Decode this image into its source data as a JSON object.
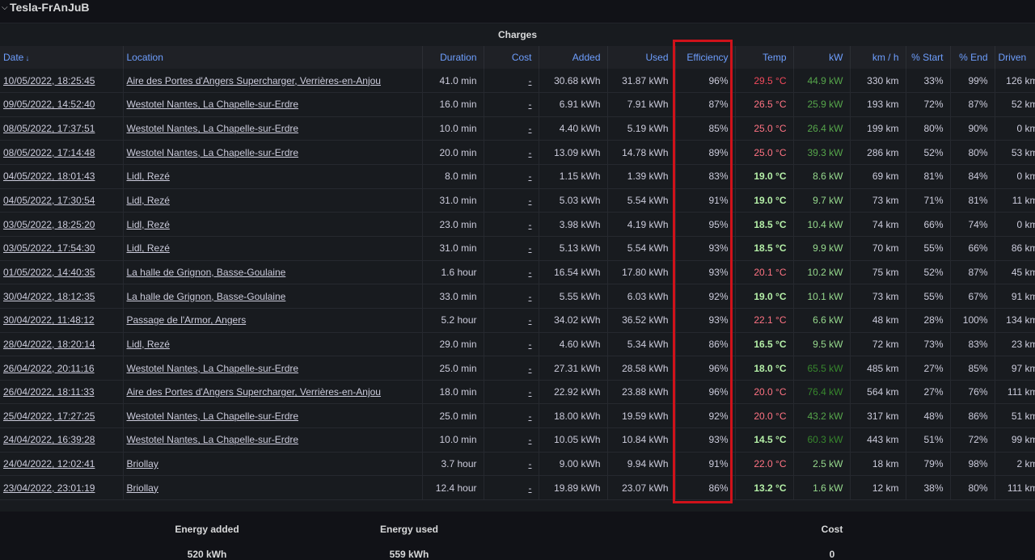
{
  "header": {
    "title": "Tesla-FrAnJuB",
    "chevron": "chevron-down-icon"
  },
  "panel": {
    "title": "Charges"
  },
  "columns": [
    "Date",
    "Location",
    "Duration",
    "Cost",
    "Added",
    "Used",
    "Efficiency",
    "Temp",
    "kW",
    "km / h",
    "% Start",
    "% End",
    "Driven"
  ],
  "rows": [
    [
      "10/05/2022, 18:25:45",
      "Aire des Portes d'Angers Supercharger, Verrières-en-Anjou",
      "41.0 min",
      "-",
      "30.68 kWh",
      "31.87 kWh",
      "96%",
      "29.5 °C",
      "44.9 kW",
      "330 km",
      "33%",
      "99%",
      "126 km"
    ],
    [
      "09/05/2022, 14:52:40",
      "Westotel Nantes, La Chapelle-sur-Erdre",
      "16.0 min",
      "-",
      "6.91 kWh",
      "7.91 kWh",
      "87%",
      "26.5 °C",
      "25.9 kW",
      "193 km",
      "72%",
      "87%",
      "52 km"
    ],
    [
      "08/05/2022, 17:37:51",
      "Westotel Nantes, La Chapelle-sur-Erdre",
      "10.0 min",
      "-",
      "4.40 kWh",
      "5.19 kWh",
      "85%",
      "25.0 °C",
      "26.4 kW",
      "199 km",
      "80%",
      "90%",
      "0 km"
    ],
    [
      "08/05/2022, 17:14:48",
      "Westotel Nantes, La Chapelle-sur-Erdre",
      "20.0 min",
      "-",
      "13.09 kWh",
      "14.78 kWh",
      "89%",
      "25.0 °C",
      "39.3 kW",
      "286 km",
      "52%",
      "80%",
      "53 km"
    ],
    [
      "04/05/2022, 18:01:43",
      "Lidl, Rezé",
      "8.0 min",
      "-",
      "1.15 kWh",
      "1.39 kWh",
      "83%",
      "19.0 °C",
      "8.6 kW",
      "69 km",
      "81%",
      "84%",
      "0 km"
    ],
    [
      "04/05/2022, 17:30:54",
      "Lidl, Rezé",
      "31.0 min",
      "-",
      "5.03 kWh",
      "5.54 kWh",
      "91%",
      "19.0 °C",
      "9.7 kW",
      "73 km",
      "71%",
      "81%",
      "11 km"
    ],
    [
      "03/05/2022, 18:25:20",
      "Lidl, Rezé",
      "23.0 min",
      "-",
      "3.98 kWh",
      "4.19 kWh",
      "95%",
      "18.5 °C",
      "10.4 kW",
      "74 km",
      "66%",
      "74%",
      "0 km"
    ],
    [
      "03/05/2022, 17:54:30",
      "Lidl, Rezé",
      "31.0 min",
      "-",
      "5.13 kWh",
      "5.54 kWh",
      "93%",
      "18.5 °C",
      "9.9 kW",
      "70 km",
      "55%",
      "66%",
      "86 km"
    ],
    [
      "01/05/2022, 14:40:35",
      "La halle de Grignon, Basse-Goulaine",
      "1.6 hour",
      "-",
      "16.54 kWh",
      "17.80 kWh",
      "93%",
      "20.1 °C",
      "10.2 kW",
      "75 km",
      "52%",
      "87%",
      "45 km"
    ],
    [
      "30/04/2022, 18:12:35",
      "La halle de Grignon, Basse-Goulaine",
      "33.0 min",
      "-",
      "5.55 kWh",
      "6.03 kWh",
      "92%",
      "19.0 °C",
      "10.1 kW",
      "73 km",
      "55%",
      "67%",
      "91 km"
    ],
    [
      "30/04/2022, 11:48:12",
      "Passage de l'Armor, Angers",
      "5.2 hour",
      "-",
      "34.02 kWh",
      "36.52 kWh",
      "93%",
      "22.1 °C",
      "6.6 kW",
      "48 km",
      "28%",
      "100%",
      "134 km"
    ],
    [
      "28/04/2022, 18:20:14",
      "Lidl, Rezé",
      "29.0 min",
      "-",
      "4.60 kWh",
      "5.34 kWh",
      "86%",
      "16.5 °C",
      "9.5 kW",
      "72 km",
      "73%",
      "83%",
      "23 km"
    ],
    [
      "26/04/2022, 20:11:16",
      "Westotel Nantes, La Chapelle-sur-Erdre",
      "25.0 min",
      "-",
      "27.31 kWh",
      "28.58 kWh",
      "96%",
      "18.0 °C",
      "65.5 kW",
      "485 km",
      "27%",
      "85%",
      "97 km"
    ],
    [
      "26/04/2022, 18:11:33",
      "Aire des Portes d'Angers Supercharger, Verrières-en-Anjou",
      "18.0 min",
      "-",
      "22.92 kWh",
      "23.88 kWh",
      "96%",
      "20.0 °C",
      "76.4 kW",
      "564 km",
      "27%",
      "76%",
      "111 km"
    ],
    [
      "25/04/2022, 17:27:25",
      "Westotel Nantes, La Chapelle-sur-Erdre",
      "25.0 min",
      "-",
      "18.00 kWh",
      "19.59 kWh",
      "92%",
      "20.0 °C",
      "43.2 kW",
      "317 km",
      "48%",
      "86%",
      "51 km"
    ],
    [
      "24/04/2022, 16:39:28",
      "Westotel Nantes, La Chapelle-sur-Erdre",
      "10.0 min",
      "-",
      "10.05 kWh",
      "10.84 kWh",
      "93%",
      "14.5 °C",
      "60.3 kW",
      "443 km",
      "51%",
      "72%",
      "99 km"
    ],
    [
      "24/04/2022, 12:02:41",
      "Briollay",
      "3.7 hour",
      "-",
      "9.00 kWh",
      "9.94 kWh",
      "91%",
      "22.0 °C",
      "2.5 kW",
      "18 km",
      "79%",
      "98%",
      "2 km"
    ],
    [
      "23/04/2022, 23:01:19",
      "Briollay",
      "12.4 hour",
      "-",
      "19.89 kWh",
      "23.07 kWh",
      "86%",
      "13.2 °C",
      "1.6 kW",
      "12 km",
      "38%",
      "80%",
      "111 km"
    ]
  ],
  "temp_colors": [
    "#f2495c",
    "#ff7383",
    "#ff7383",
    "#ff7383",
    "#b5f0a8",
    "#b5f0a8",
    "#b5f0a8",
    "#b5f0a8",
    "#ff7383",
    "#b5f0a8",
    "#ff7383",
    "#b5f0a8",
    "#b5f0a8",
    "#ff7383",
    "#ff7383",
    "#b5f0a8",
    "#ff7383",
    "#b5f0a8"
  ],
  "kw_colors": [
    "#56a64b",
    "#56a64b",
    "#56a64b",
    "#56a64b",
    "#96d98d",
    "#96d98d",
    "#96d98d",
    "#96d98d",
    "#96d98d",
    "#96d98d",
    "#96d98d",
    "#96d98d",
    "#37872d",
    "#37872d",
    "#56a64b",
    "#37872d",
    "#96d98d",
    "#96d98d"
  ],
  "stats": {
    "energy_added_label": "Energy added",
    "energy_added_value": "520 kWh",
    "energy_used_label": "Energy used",
    "energy_used_value": "559 kWh",
    "cost_label": "Cost",
    "cost_value": "0"
  }
}
